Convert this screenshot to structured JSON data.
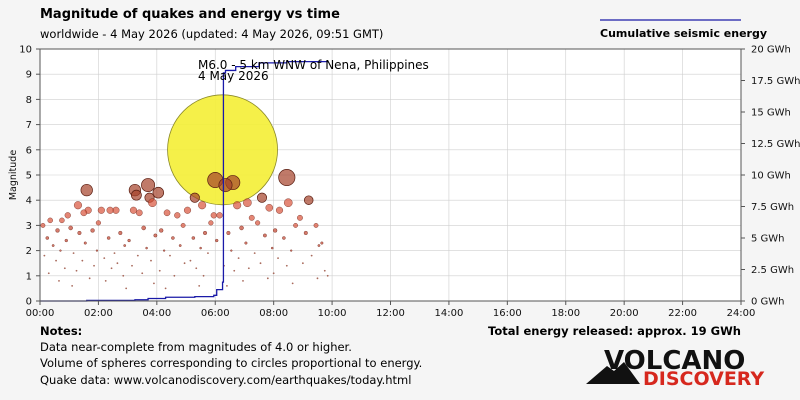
{
  "header": {
    "title": "Magnitude of quakes and energy vs time",
    "subtitle": "worldwide -  4 May 2026 (updated: 4 May 2026, 09:51 GMT)",
    "legend_label": "Cumulative seismic energy"
  },
  "colors": {
    "energy_line": "#1a1aa8",
    "big_quake": "#f4ee35",
    "quake_dark": "#a5422a",
    "quake_mid": "#d9533a",
    "quake_small": "#c64d3a",
    "grid": "#cfcfcf"
  },
  "notes": {
    "heading": "Notes:",
    "lines": [
      "Data near-complete from magnitudes of 4.0 or higher.",
      "Volume of spheres corresponding to circles proportional to energy.",
      "Quake data: www.volcanodiscovery.com/earthquakes/today.html"
    ],
    "total": "Total energy released: approx. 19 GWh"
  },
  "logo": {
    "line1": "VOLCANO",
    "line2": "DISCOVERY"
  },
  "chart_data": {
    "type": "scatter",
    "title": "Magnitude of quakes and energy vs time",
    "ylabel": "Magnitude",
    "xlim": [
      0,
      24
    ],
    "ylim": [
      0,
      10
    ],
    "y2lim": [
      0,
      20
    ],
    "grid": true,
    "legend": "top-right",
    "x_ticks": [
      "00:00",
      "02:00",
      "04:00",
      "06:00",
      "08:00",
      "10:00",
      "12:00",
      "14:00",
      "16:00",
      "18:00",
      "20:00",
      "22:00",
      "24:00"
    ],
    "y_ticks": [
      "0",
      "1",
      "2",
      "3",
      "4",
      "5",
      "6",
      "7",
      "8",
      "9",
      "10"
    ],
    "y2_ticks": [
      "0 GWh",
      "2.5 GWh",
      "5 GWh",
      "7.5 GWh",
      "10 GWh",
      "12.5 GWh",
      "15 GWh",
      "17.5 GWh",
      "20 GWh"
    ],
    "annotation": {
      "line1": "M6.0 - 5 km WNW of Nena, Philippines",
      "line2": "4 May 2026"
    },
    "quakes": [
      {
        "t": 6.25,
        "mag": 6.0
      },
      {
        "t": 8.45,
        "mag": 4.9
      },
      {
        "t": 6.0,
        "mag": 4.8
      },
      {
        "t": 6.6,
        "mag": 4.7
      },
      {
        "t": 6.35,
        "mag": 4.6
      },
      {
        "t": 3.7,
        "mag": 4.6
      },
      {
        "t": 1.6,
        "mag": 4.4
      },
      {
        "t": 3.25,
        "mag": 4.4
      },
      {
        "t": 4.05,
        "mag": 4.3
      },
      {
        "t": 3.3,
        "mag": 4.2
      },
      {
        "t": 3.75,
        "mag": 4.1
      },
      {
        "t": 5.3,
        "mag": 4.1
      },
      {
        "t": 7.6,
        "mag": 4.1
      },
      {
        "t": 9.2,
        "mag": 4.0
      },
      {
        "t": 8.5,
        "mag": 3.9
      },
      {
        "t": 7.1,
        "mag": 3.9
      },
      {
        "t": 3.85,
        "mag": 3.9
      },
      {
        "t": 1.3,
        "mag": 3.8
      },
      {
        "t": 5.55,
        "mag": 3.8
      },
      {
        "t": 6.75,
        "mag": 3.8
      },
      {
        "t": 7.85,
        "mag": 3.7
      },
      {
        "t": 2.6,
        "mag": 3.6
      },
      {
        "t": 3.2,
        "mag": 3.6
      },
      {
        "t": 1.65,
        "mag": 3.6
      },
      {
        "t": 8.2,
        "mag": 3.6
      },
      {
        "t": 5.05,
        "mag": 3.6
      },
      {
        "t": 2.1,
        "mag": 3.6
      },
      {
        "t": 1.5,
        "mag": 3.5
      },
      {
        "t": 4.35,
        "mag": 3.5
      },
      {
        "t": 3.4,
        "mag": 3.5
      },
      {
        "t": 2.4,
        "mag": 3.6
      },
      {
        "t": 7.25,
        "mag": 3.3
      },
      {
        "t": 6.15,
        "mag": 3.4
      },
      {
        "t": 0.95,
        "mag": 3.4
      },
      {
        "t": 5.95,
        "mag": 3.4
      },
      {
        "t": 4.7,
        "mag": 3.4
      },
      {
        "t": 8.9,
        "mag": 3.3
      },
      {
        "t": 0.35,
        "mag": 3.2
      },
      {
        "t": 0.75,
        "mag": 3.2
      },
      {
        "t": 2.0,
        "mag": 3.1
      },
      {
        "t": 5.85,
        "mag": 3.1
      },
      {
        "t": 7.45,
        "mag": 3.1
      },
      {
        "t": 9.45,
        "mag": 3.0
      },
      {
        "t": 0.1,
        "mag": 3.0
      },
      {
        "t": 4.9,
        "mag": 3.0
      },
      {
        "t": 8.75,
        "mag": 3.0
      },
      {
        "t": 1.05,
        "mag": 2.9
      },
      {
        "t": 3.55,
        "mag": 2.9
      },
      {
        "t": 6.9,
        "mag": 2.9
      },
      {
        "t": 1.8,
        "mag": 2.8
      },
      {
        "t": 8.05,
        "mag": 2.8
      },
      {
        "t": 4.15,
        "mag": 2.8
      },
      {
        "t": 0.6,
        "mag": 2.8
      },
      {
        "t": 2.75,
        "mag": 2.7
      },
      {
        "t": 5.65,
        "mag": 2.7
      },
      {
        "t": 9.1,
        "mag": 2.7
      },
      {
        "t": 6.45,
        "mag": 2.7
      },
      {
        "t": 1.35,
        "mag": 2.7
      },
      {
        "t": 3.95,
        "mag": 2.6
      },
      {
        "t": 7.7,
        "mag": 2.6
      },
      {
        "t": 0.25,
        "mag": 2.5
      },
      {
        "t": 4.55,
        "mag": 2.5
      },
      {
        "t": 5.25,
        "mag": 2.5
      },
      {
        "t": 2.35,
        "mag": 2.5
      },
      {
        "t": 8.35,
        "mag": 2.5
      },
      {
        "t": 0.9,
        "mag": 2.4
      },
      {
        "t": 6.05,
        "mag": 2.4
      },
      {
        "t": 3.05,
        "mag": 2.4
      },
      {
        "t": 7.05,
        "mag": 2.3
      },
      {
        "t": 9.65,
        "mag": 2.3
      },
      {
        "t": 1.55,
        "mag": 2.3
      },
      {
        "t": 4.8,
        "mag": 2.2
      },
      {
        "t": 2.9,
        "mag": 2.2
      },
      {
        "t": 9.55,
        "mag": 2.2
      },
      {
        "t": 0.45,
        "mag": 2.2
      },
      {
        "t": 5.5,
        "mag": 2.1
      },
      {
        "t": 7.95,
        "mag": 2.1
      },
      {
        "t": 3.65,
        "mag": 2.1
      },
      {
        "t": 1.95,
        "mag": 2.0
      },
      {
        "t": 6.55,
        "mag": 2.0
      },
      {
        "t": 0.7,
        "mag": 2.0
      },
      {
        "t": 4.25,
        "mag": 2.0
      },
      {
        "t": 8.6,
        "mag": 2.0
      },
      {
        "t": 2.55,
        "mag": 1.9
      },
      {
        "t": 5.75,
        "mag": 1.9
      },
      {
        "t": 1.15,
        "mag": 1.9
      },
      {
        "t": 7.35,
        "mag": 1.9
      },
      {
        "t": 3.35,
        "mag": 1.8
      },
      {
        "t": 9.3,
        "mag": 1.8
      },
      {
        "t": 0.15,
        "mag": 1.8
      },
      {
        "t": 4.45,
        "mag": 1.8
      },
      {
        "t": 6.8,
        "mag": 1.7
      },
      {
        "t": 2.2,
        "mag": 1.7
      },
      {
        "t": 8.15,
        "mag": 1.7
      },
      {
        "t": 1.45,
        "mag": 1.6
      },
      {
        "t": 5.15,
        "mag": 1.6
      },
      {
        "t": 3.8,
        "mag": 1.6
      },
      {
        "t": 0.55,
        "mag": 1.6
      },
      {
        "t": 7.55,
        "mag": 1.5
      },
      {
        "t": 2.65,
        "mag": 1.5
      },
      {
        "t": 9.0,
        "mag": 1.5
      },
      {
        "t": 4.95,
        "mag": 1.5
      },
      {
        "t": 1.85,
        "mag": 1.4
      },
      {
        "t": 6.3,
        "mag": 1.4
      },
      {
        "t": 3.15,
        "mag": 1.4
      },
      {
        "t": 8.45,
        "mag": 1.4
      },
      {
        "t": 0.85,
        "mag": 1.3
      },
      {
        "t": 5.35,
        "mag": 1.3
      },
      {
        "t": 2.45,
        "mag": 1.3
      },
      {
        "t": 7.15,
        "mag": 1.3
      },
      {
        "t": 4.1,
        "mag": 1.2
      },
      {
        "t": 9.75,
        "mag": 1.2
      },
      {
        "t": 1.25,
        "mag": 1.2
      },
      {
        "t": 6.65,
        "mag": 1.2
      },
      {
        "t": 3.5,
        "mag": 1.1
      },
      {
        "t": 0.3,
        "mag": 1.1
      },
      {
        "t": 8.0,
        "mag": 1.1
      },
      {
        "t": 2.85,
        "mag": 1.0
      },
      {
        "t": 5.6,
        "mag": 1.0
      },
      {
        "t": 4.6,
        "mag": 1.0
      },
      {
        "t": 1.7,
        "mag": 0.9
      },
      {
        "t": 7.8,
        "mag": 0.9
      },
      {
        "t": 9.5,
        "mag": 0.9
      },
      {
        "t": 6.95,
        "mag": 0.8
      },
      {
        "t": 0.65,
        "mag": 0.8
      },
      {
        "t": 2.25,
        "mag": 0.8
      },
      {
        "t": 3.9,
        "mag": 0.7
      },
      {
        "t": 8.65,
        "mag": 0.7
      },
      {
        "t": 5.45,
        "mag": 0.6
      },
      {
        "t": 1.1,
        "mag": 0.6
      },
      {
        "t": 6.4,
        "mag": 0.6
      },
      {
        "t": 4.3,
        "mag": 0.5
      },
      {
        "t": 2.95,
        "mag": 0.5
      },
      {
        "t": 9.85,
        "mag": 1.0
      }
    ],
    "cumulative_energy_gwh": [
      {
        "t": 0.0,
        "e": 0.0
      },
      {
        "t": 1.6,
        "e": 0.05
      },
      {
        "t": 3.25,
        "e": 0.1
      },
      {
        "t": 3.7,
        "e": 0.2
      },
      {
        "t": 4.3,
        "e": 0.3
      },
      {
        "t": 5.3,
        "e": 0.35
      },
      {
        "t": 5.95,
        "e": 0.45
      },
      {
        "t": 6.05,
        "e": 0.9
      },
      {
        "t": 6.25,
        "e": 1.5
      },
      {
        "t": 6.28,
        "e": 18.1
      },
      {
        "t": 6.35,
        "e": 18.3
      },
      {
        "t": 6.7,
        "e": 18.6
      },
      {
        "t": 7.5,
        "e": 18.9
      },
      {
        "t": 8.45,
        "e": 19.0
      },
      {
        "t": 9.85,
        "e": 19.05
      }
    ]
  }
}
